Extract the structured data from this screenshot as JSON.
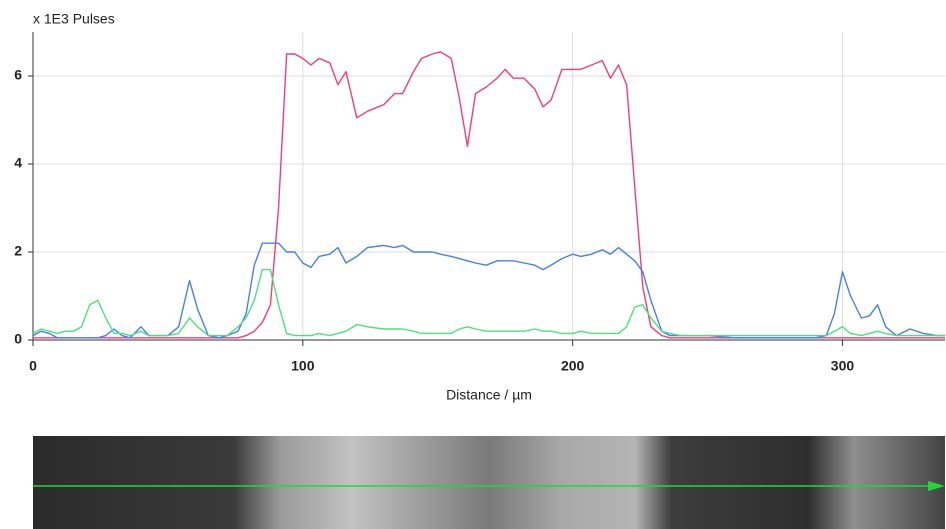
{
  "chart_data": {
    "type": "line",
    "ylabel": "x 1E3 Pulses",
    "xlabel": "Distance / µm",
    "xlim": [
      0,
      338
    ],
    "xticks": [
      0,
      100,
      200,
      300
    ],
    "ylim": [
      0,
      7
    ],
    "yticks": [
      0,
      2,
      4,
      6
    ],
    "grid": true,
    "x": [
      0,
      3,
      6,
      9,
      12,
      15,
      18,
      21,
      24,
      27,
      30,
      33,
      36,
      40,
      43,
      47,
      50,
      54,
      58,
      61,
      65,
      69,
      72,
      76,
      79,
      82,
      85,
      88,
      91,
      94,
      97,
      100,
      103,
      106,
      110,
      113,
      116,
      120,
      124,
      130,
      134,
      137,
      141,
      144,
      148,
      151,
      155,
      158,
      161,
      164,
      168,
      172,
      175,
      178,
      182,
      186,
      189,
      192,
      196,
      200,
      203,
      207,
      211,
      214,
      217,
      220,
      223,
      226,
      229,
      233,
      236,
      240,
      250,
      260,
      270,
      280,
      290,
      294,
      297,
      300,
      303,
      307,
      310,
      313,
      316,
      320,
      325,
      330,
      335,
      338
    ],
    "series": [
      {
        "color": "#ee3f7c",
        "values": [
          0.05,
          0.05,
          0.05,
          0.05,
          0.05,
          0.05,
          0.05,
          0.05,
          0.05,
          0.05,
          0.05,
          0.05,
          0.05,
          0.05,
          0.05,
          0.05,
          0.05,
          0.05,
          0.05,
          0.05,
          0.05,
          0.05,
          0.05,
          0.05,
          0.1,
          0.2,
          0.4,
          0.8,
          3.0,
          6.5,
          6.5,
          6.4,
          6.25,
          6.4,
          6.3,
          5.8,
          6.1,
          5.05,
          5.2,
          5.35,
          5.6,
          5.6,
          6.1,
          6.4,
          6.5,
          6.55,
          6.4,
          5.5,
          4.4,
          5.6,
          5.75,
          5.95,
          6.15,
          5.95,
          5.95,
          5.7,
          5.3,
          5.45,
          6.15,
          6.15,
          6.15,
          6.25,
          6.35,
          5.95,
          6.25,
          5.8,
          3.5,
          1.2,
          0.3,
          0.1,
          0.05,
          0.05,
          0.05,
          0.05,
          0.05,
          0.05,
          0.05,
          0.05,
          0.05,
          0.05,
          0.05,
          0.05,
          0.05,
          0.05,
          0.05,
          0.05,
          0.05,
          0.05,
          0.05,
          0.05
        ]
      },
      {
        "color": "#4a7fe6",
        "values": [
          0.1,
          0.2,
          0.15,
          0.05,
          0.05,
          0.05,
          0.05,
          0.05,
          0.05,
          0.1,
          0.25,
          0.1,
          0.05,
          0.3,
          0.1,
          0.1,
          0.1,
          0.3,
          1.35,
          0.7,
          0.1,
          0.05,
          0.1,
          0.2,
          0.6,
          1.7,
          2.2,
          2.2,
          2.2,
          2.0,
          2.0,
          1.75,
          1.65,
          1.9,
          1.95,
          2.1,
          1.75,
          1.9,
          2.1,
          2.15,
          2.1,
          2.15,
          2.0,
          2.0,
          2.0,
          1.95,
          1.9,
          1.85,
          1.8,
          1.75,
          1.7,
          1.8,
          1.8,
          1.8,
          1.75,
          1.7,
          1.6,
          1.7,
          1.85,
          1.95,
          1.9,
          1.95,
          2.05,
          1.95,
          2.1,
          1.95,
          1.8,
          1.55,
          0.9,
          0.2,
          0.1,
          0.1,
          0.1,
          0.05,
          0.05,
          0.05,
          0.05,
          0.1,
          0.6,
          1.55,
          1.0,
          0.5,
          0.55,
          0.8,
          0.3,
          0.1,
          0.25,
          0.15,
          0.1,
          0.1
        ]
      },
      {
        "color": "#4fe07e",
        "values": [
          0.15,
          0.25,
          0.2,
          0.15,
          0.2,
          0.2,
          0.3,
          0.8,
          0.9,
          0.5,
          0.15,
          0.15,
          0.1,
          0.2,
          0.1,
          0.1,
          0.1,
          0.15,
          0.5,
          0.3,
          0.1,
          0.1,
          0.1,
          0.3,
          0.5,
          0.9,
          1.6,
          1.6,
          0.8,
          0.15,
          0.1,
          0.1,
          0.1,
          0.15,
          0.1,
          0.15,
          0.2,
          0.35,
          0.3,
          0.25,
          0.25,
          0.25,
          0.2,
          0.15,
          0.15,
          0.15,
          0.15,
          0.25,
          0.3,
          0.25,
          0.2,
          0.2,
          0.2,
          0.2,
          0.2,
          0.25,
          0.2,
          0.2,
          0.15,
          0.15,
          0.2,
          0.15,
          0.15,
          0.15,
          0.15,
          0.3,
          0.75,
          0.8,
          0.5,
          0.2,
          0.15,
          0.1,
          0.1,
          0.1,
          0.1,
          0.1,
          0.1,
          0.1,
          0.2,
          0.3,
          0.15,
          0.1,
          0.15,
          0.2,
          0.15,
          0.1,
          0.1,
          0.1,
          0.1,
          0.1
        ]
      }
    ]
  }
}
